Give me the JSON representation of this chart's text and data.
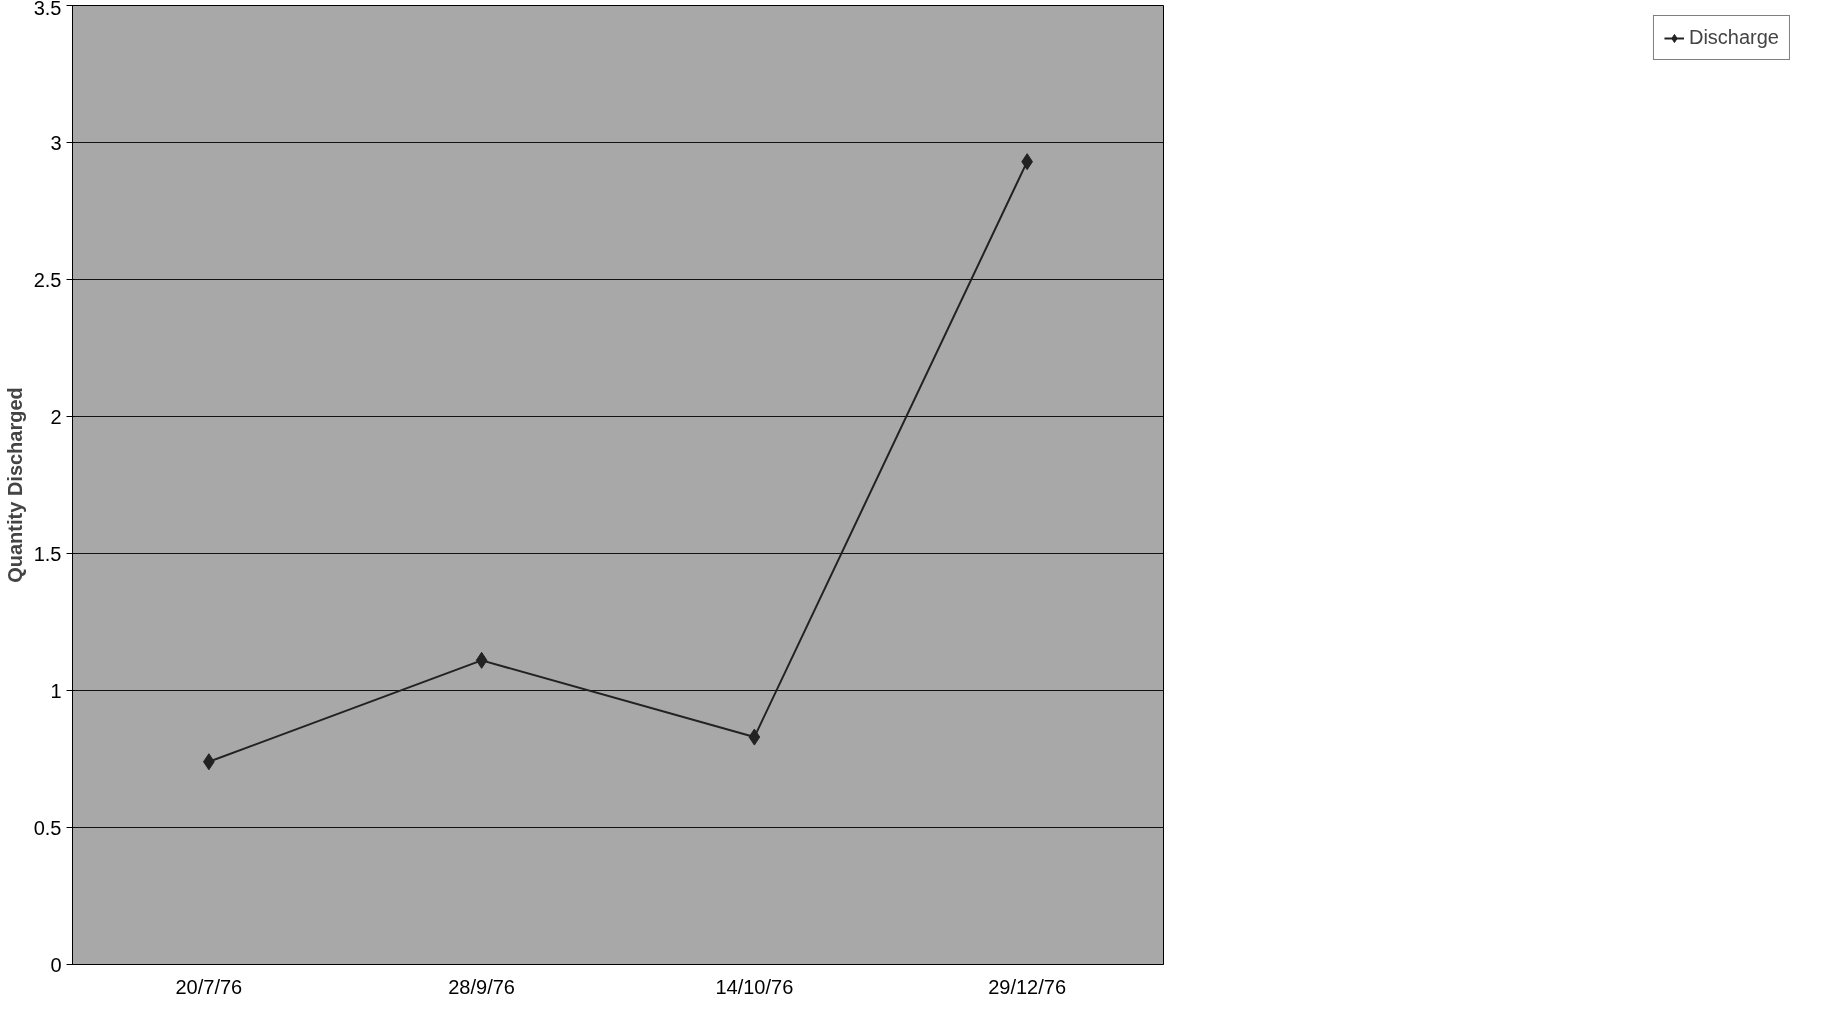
{
  "chart_data": {
    "type": "line",
    "ylabel": "Quantity Discharged",
    "categories": [
      "20/7/76",
      "28/9/76",
      "14/10/76",
      "29/12/76"
    ],
    "series": [
      {
        "name": "Discharge",
        "color": "#222222",
        "values": [
          0.74,
          1.11,
          0.83,
          2.93
        ]
      }
    ],
    "ylim": [
      0,
      3.5
    ],
    "yticks": [
      0,
      0.5,
      1,
      1.5,
      2,
      2.5,
      3,
      3.5
    ],
    "grid": "y",
    "legend": "right",
    "marker": "diamond",
    "line_style": "solid"
  }
}
